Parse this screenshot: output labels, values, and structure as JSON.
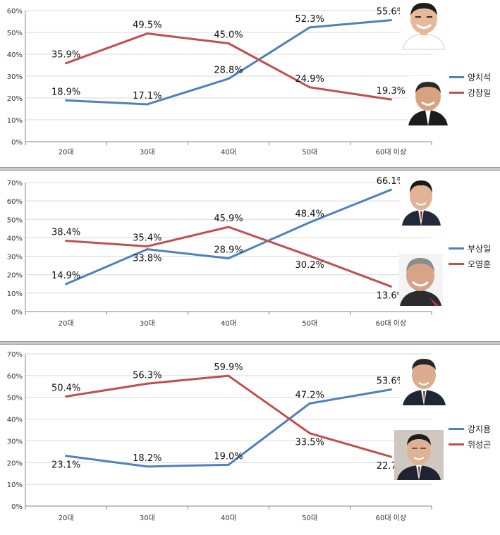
{
  "colors": {
    "blue": "#4f81bd",
    "red": "#c0504d",
    "grid": "#d9d9d9",
    "axis": "#868686"
  },
  "chart_data": [
    {
      "type": "line",
      "categories": [
        "20대",
        "30대",
        "40대",
        "50대",
        "60대 이상"
      ],
      "ylim": [
        0,
        60
      ],
      "yticks": [
        "0%",
        "10%",
        "20%",
        "30%",
        "40%",
        "50%",
        "60%"
      ],
      "grid": true,
      "legend_position": "right",
      "series": [
        {
          "name": "양치석",
          "color": "#4f81bd",
          "values": [
            18.9,
            17.1,
            28.8,
            52.3,
            55.6
          ],
          "labels": [
            "18.9%",
            "17.1%",
            "28.8%",
            "52.3%",
            "55.6%"
          ],
          "label_pos": [
            "above",
            "above",
            "above",
            "above",
            "above"
          ]
        },
        {
          "name": "강창일",
          "color": "#c0504d",
          "values": [
            35.9,
            49.5,
            45.0,
            24.9,
            19.3
          ],
          "labels": [
            "35.9%",
            "49.5%",
            "45.0%",
            "24.9%",
            "19.3%"
          ],
          "label_pos": [
            "above",
            "above",
            "above",
            "above",
            "above"
          ]
        }
      ],
      "photos": [
        {
          "name": "top-candidate-photo",
          "skin": "#e7b89a",
          "hair": "#1e1e1e",
          "cloth": "#ffffff",
          "bg": "#ffffff"
        },
        {
          "name": "bottom-candidate-photo",
          "skin": "#d9a27f",
          "hair": "#2a2a2a",
          "cloth": "#1c1c1c",
          "bg": "#ffffff"
        }
      ]
    },
    {
      "type": "line",
      "categories": [
        "20대",
        "30대",
        "40대",
        "50대",
        "60대 이상"
      ],
      "ylim": [
        0,
        70
      ],
      "yticks": [
        "0%",
        "10%",
        "20%",
        "30%",
        "40%",
        "50%",
        "60%",
        "70%"
      ],
      "grid": true,
      "legend_position": "right",
      "series": [
        {
          "name": "부상일",
          "color": "#4f81bd",
          "values": [
            14.9,
            33.8,
            28.9,
            48.4,
            66.1
          ],
          "labels": [
            "14.9%",
            "33.8%",
            "28.9%",
            "48.4%",
            "66.1%"
          ],
          "label_pos": [
            "above",
            "below",
            "above",
            "above",
            "above"
          ]
        },
        {
          "name": "오영훈",
          "color": "#c0504d",
          "values": [
            38.4,
            35.4,
            45.9,
            30.2,
            13.6
          ],
          "labels": [
            "38.4%",
            "35.4%",
            "45.9%",
            "30.2%",
            "13.6%"
          ],
          "label_pos": [
            "above",
            "above",
            "above",
            "below",
            "below"
          ]
        }
      ],
      "photos": [
        {
          "name": "top-candidate-photo",
          "skin": "#e2b295",
          "hair": "#1a1a1a",
          "cloth": "#222a3a",
          "bg": "#ffffff"
        },
        {
          "name": "bottom-candidate-photo",
          "skin": "#d8a488",
          "hair": "#8c8c8c",
          "cloth": "#2c2c2c",
          "bg": "#f4f4f4"
        }
      ]
    },
    {
      "type": "line",
      "categories": [
        "20대",
        "30대",
        "40대",
        "50대",
        "60대 이상"
      ],
      "ylim": [
        0,
        70
      ],
      "yticks": [
        "0%",
        "10%",
        "20%",
        "30%",
        "40%",
        "50%",
        "60%",
        "70%"
      ],
      "grid": true,
      "legend_position": "right",
      "series": [
        {
          "name": "강지용",
          "color": "#4f81bd",
          "values": [
            23.1,
            18.2,
            19.0,
            47.2,
            53.6
          ],
          "labels": [
            "23.1%",
            "18.2%",
            "19.0%",
            "47.2%",
            "53.6%"
          ],
          "label_pos": [
            "below",
            "above",
            "above",
            "above",
            "above"
          ]
        },
        {
          "name": "위성곤",
          "color": "#c0504d",
          "values": [
            50.4,
            56.3,
            59.9,
            33.5,
            22.7
          ],
          "labels": [
            "50.4%",
            "56.3%",
            "59.9%",
            "33.5%",
            "22.7%"
          ],
          "label_pos": [
            "above",
            "above",
            "above",
            "below",
            "below"
          ]
        }
      ],
      "photos": [
        {
          "name": "top-candidate-photo",
          "skin": "#dcac8e",
          "hair": "#262626",
          "cloth": "#1f2533",
          "bg": "#ffffff"
        },
        {
          "name": "bottom-candidate-photo",
          "skin": "#e0b194",
          "hair": "#1d1d1d",
          "cloth": "#1f2430",
          "bg": "#cfc8c0"
        }
      ]
    }
  ]
}
